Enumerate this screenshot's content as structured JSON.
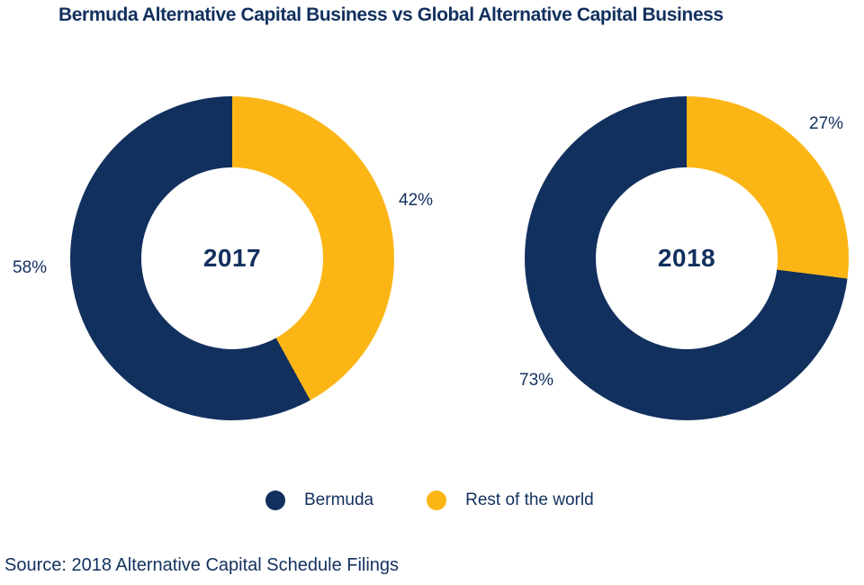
{
  "title": "Bermuda Alternative Capital Business vs Global Alternative Capital Business",
  "source_note": "Source: 2018 Alternative Capital Schedule Filings",
  "colors": {
    "navy": "#12305E",
    "gold": "#FBB616",
    "background": "#FFFFFF"
  },
  "legend": {
    "items": [
      {
        "label": "Bermuda",
        "color": "#12305E"
      },
      {
        "label": "Rest of the world",
        "color": "#FBB616"
      }
    ]
  },
  "chart_data": [
    {
      "type": "pie",
      "subtype": "donut",
      "center_label": "2017",
      "labels": [
        "Bermuda",
        "Rest of the world"
      ],
      "values": [
        58,
        42
      ],
      "unit": "%",
      "slice_labels": [
        "58%",
        "42%"
      ],
      "colors": [
        "#12305E",
        "#FBB616"
      ],
      "layout": "starts at 12 o'clock, Rest of the world drawn first, clockwise"
    },
    {
      "type": "pie",
      "subtype": "donut",
      "center_label": "2018",
      "labels": [
        "Bermuda",
        "Rest of the world"
      ],
      "values": [
        73,
        27
      ],
      "unit": "%",
      "slice_labels": [
        "73%",
        "27%"
      ],
      "colors": [
        "#12305E",
        "#FBB616"
      ],
      "layout": "starts at 12 o'clock, Rest of the world drawn first, clockwise"
    }
  ]
}
